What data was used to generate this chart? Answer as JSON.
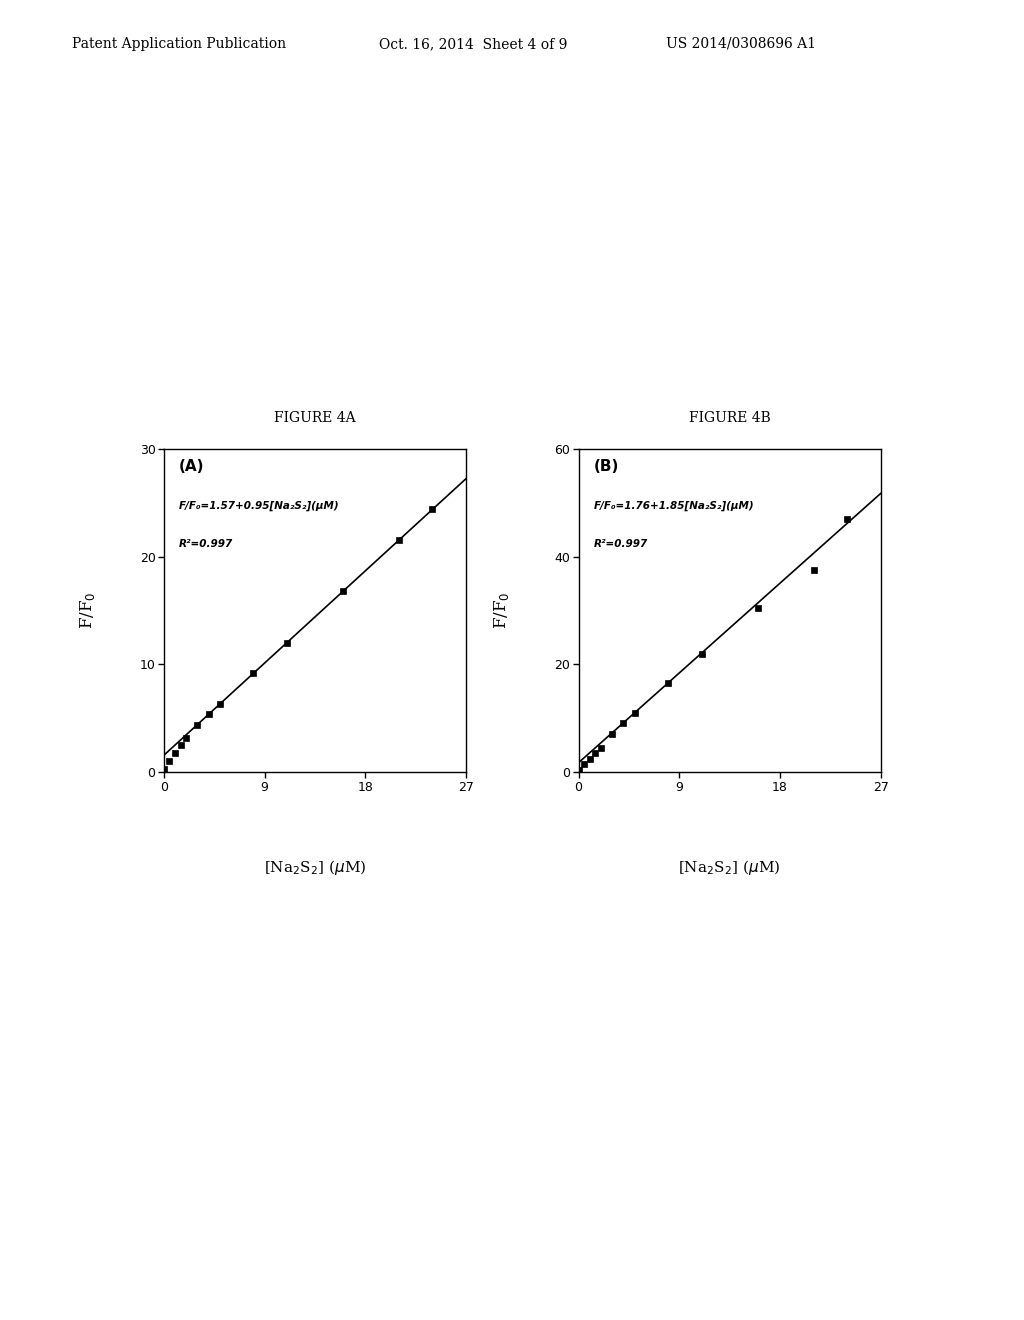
{
  "fig4A": {
    "title": "FIGURE 4A",
    "label": "(A)",
    "slope": 0.95,
    "intercept": 1.57,
    "data_x": [
      0.0,
      0.5,
      1.0,
      1.5,
      2.0,
      3.0,
      4.0,
      5.0,
      8.0,
      11.0,
      16.0,
      21.0,
      24.0
    ],
    "data_y": [
      0.3,
      1.0,
      1.8,
      2.5,
      3.2,
      4.4,
      5.4,
      6.3,
      9.2,
      12.0,
      16.8,
      21.5,
      24.4
    ],
    "xlim": [
      0,
      27
    ],
    "ylim": [
      0,
      30
    ],
    "xticks": [
      0,
      9,
      18,
      27
    ],
    "yticks": [
      0,
      10,
      20,
      30
    ],
    "eq_line1": "F/F₀=1.57+0.95[Na₂S₂](μM)",
    "eq_line2": "R²=0.997"
  },
  "fig4B": {
    "title": "FIGURE 4B",
    "label": "(B)",
    "slope": 1.85,
    "intercept": 1.76,
    "data_x": [
      0.0,
      0.5,
      1.0,
      1.5,
      2.0,
      3.0,
      4.0,
      5.0,
      8.0,
      11.0,
      16.0,
      21.0,
      24.0
    ],
    "data_y": [
      0.5,
      1.5,
      2.5,
      3.5,
      4.5,
      7.0,
      9.2,
      11.0,
      16.6,
      22.0,
      30.5,
      37.5,
      47.0
    ],
    "xlim": [
      0,
      27
    ],
    "ylim": [
      0,
      60
    ],
    "xticks": [
      0,
      9,
      18,
      27
    ],
    "yticks": [
      0,
      20,
      40,
      60
    ],
    "eq_line1": "F/F₀=1.76+1.85[Na₂S₂](μM)",
    "eq_line2": "R²=0.997"
  },
  "header_left": "Patent Application Publication",
  "header_center": "Oct. 16, 2014  Sheet 4 of 9",
  "header_right": "US 2014/0308696 A1",
  "bg_color": "#ffffff",
  "data_color": "#000000",
  "line_color": "#000000",
  "fig_title_fontsize": 10,
  "header_fontsize": 10
}
